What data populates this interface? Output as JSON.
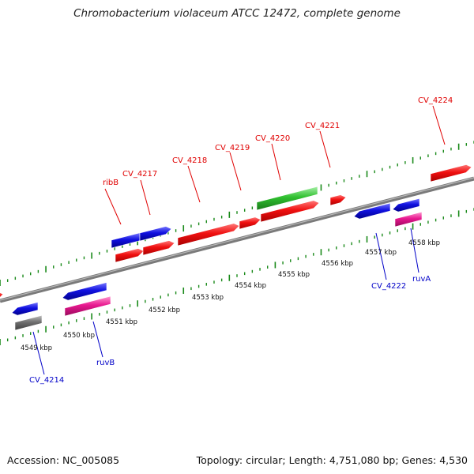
{
  "title": "Chromobacterium violaceum ATCC 12472, complete genome",
  "accession": "Accession: NC_005085",
  "topology": "Topology: circular; Length: 4,751,080 bp; Genes: 4,530",
  "colors": {
    "red": "#f01010",
    "blue": "#1010e0",
    "green": "#30c030",
    "pink": "#e81890",
    "gray": "#707070",
    "tick": "#1a8a1a",
    "label_red": "#e00000",
    "label_blue": "#0000c8"
  },
  "kbp_labels": [
    "4549 kbp",
    "4550 kbp",
    "4551 kbp",
    "4552 kbp",
    "4553 kbp",
    "4554 kbp",
    "4555 kbp",
    "4556 kbp",
    "4557 kbp",
    "4558 kbp"
  ],
  "gene_labels": {
    "top": [
      "ribB",
      "CV_4217",
      "CV_4218",
      "CV_4219",
      "CV_4220",
      "CV_4221",
      "CV_4224"
    ],
    "bottom": [
      "CV_4214",
      "ruvB",
      "CV_4222",
      "ruvA"
    ]
  }
}
